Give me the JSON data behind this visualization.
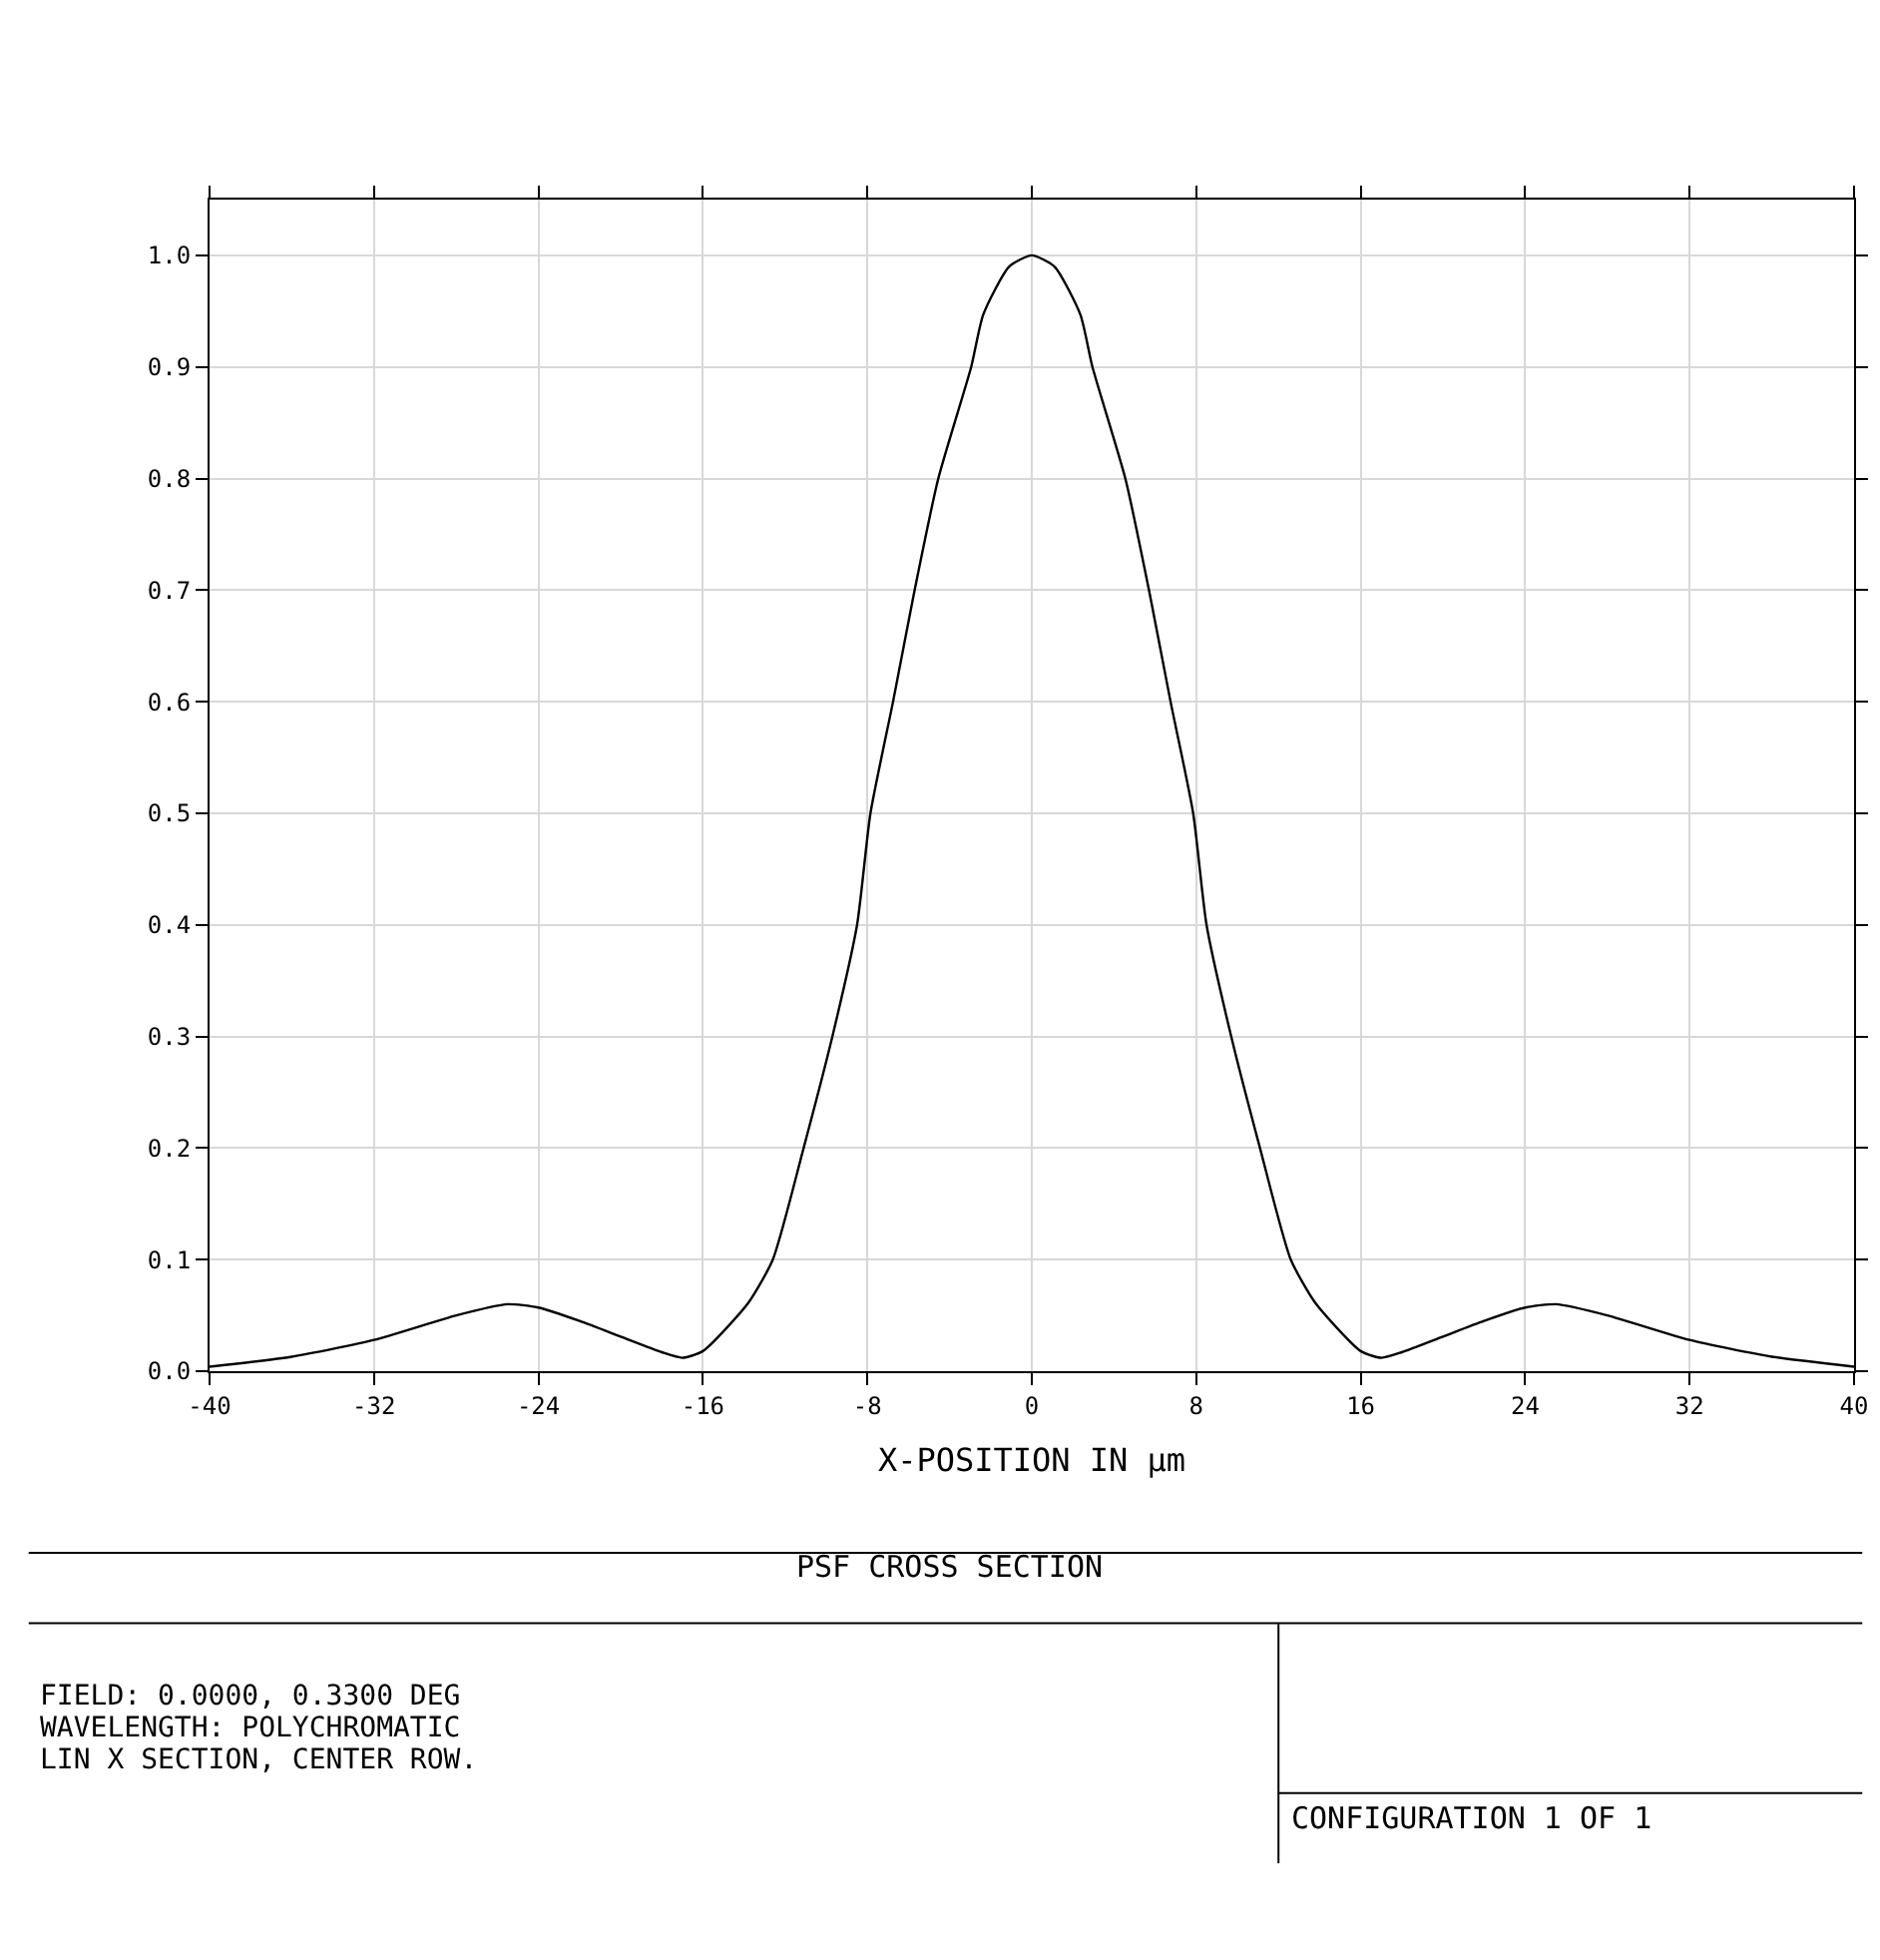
{
  "chart_data": {
    "type": "line",
    "title": "PSF CROSS SECTION",
    "xlabel": "X-POSITION IN μm",
    "x": [
      -40,
      -36,
      -32,
      -28,
      -25.5,
      -24,
      -22,
      -20,
      -18,
      -17,
      -16,
      -13.8,
      -12.6,
      -11.1,
      -9.7,
      -8.5,
      -7.85,
      -6.75,
      -5.7,
      -4.55,
      -2.95,
      -2.36,
      -1.1,
      0,
      1.1,
      2.36,
      2.95,
      4.55,
      5.7,
      6.75,
      7.85,
      8.5,
      9.7,
      11.1,
      12.6,
      13.8,
      16,
      17,
      18,
      20,
      22,
      24,
      25.5,
      28,
      32,
      36,
      40
    ],
    "series": [
      {
        "color": "#000000",
        "values": [
          0.004,
          0.013,
          0.028,
          0.05,
          0.06,
          0.057,
          0.045,
          0.031,
          0.017,
          0.012,
          0.018,
          0.061,
          0.1,
          0.2,
          0.3,
          0.4,
          0.5,
          0.6,
          0.7,
          0.8,
          0.9,
          0.947,
          0.99,
          1.0,
          0.99,
          0.947,
          0.9,
          0.8,
          0.7,
          0.6,
          0.5,
          0.4,
          0.3,
          0.2,
          0.1,
          0.061,
          0.018,
          0.012,
          0.017,
          0.031,
          0.045,
          0.057,
          0.06,
          0.05,
          0.028,
          0.013,
          0.004
        ]
      }
    ],
    "xlim": [
      -40,
      40
    ],
    "xticks": [
      -40,
      -32,
      -24,
      -16,
      -8,
      0,
      8,
      16,
      24,
      32,
      40
    ],
    "ylim": [
      0,
      1.05
    ],
    "yticks": [
      {
        "value": 0,
        "label": "0.0"
      },
      0.1,
      0.2,
      0.3,
      0.4,
      0.5,
      0.6,
      0.7,
      0.8,
      0.9,
      {
        "value": 1,
        "label": "1.0"
      }
    ],
    "grid": true,
    "line_style": "solid",
    "marker": "none",
    "annotations": [
      "FIELD: 0.0000, 0.3300 DEG",
      "WAVELENGTH: POLYCHROMATIC",
      "LIN X SECTION, CENTER ROW.",
      "CONFIGURATION 1 OF 1"
    ]
  }
}
